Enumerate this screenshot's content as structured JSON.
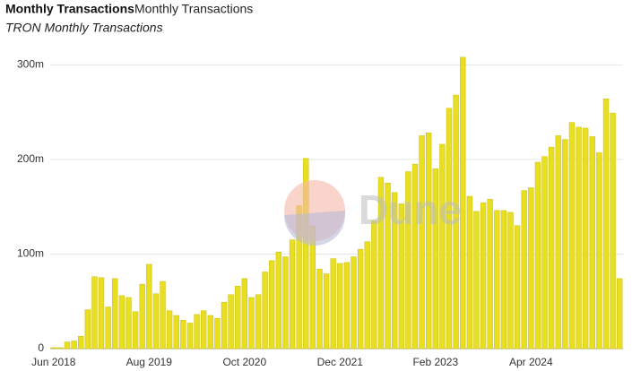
{
  "title": "Monthly Transactions",
  "subtitle_tab": "Monthly Transactions",
  "watermark": "Dune",
  "chart_data": {
    "type": "bar",
    "title": "TRON Monthly Transactions",
    "color": "#e9df20",
    "grid": true,
    "categories": [
      "Jun 2018",
      null,
      null,
      null,
      null,
      null,
      null,
      null,
      null,
      null,
      null,
      null,
      null,
      null,
      "Aug 2019",
      null,
      null,
      null,
      null,
      null,
      null,
      null,
      null,
      null,
      null,
      null,
      null,
      null,
      "Oct 2020",
      null,
      null,
      null,
      null,
      null,
      null,
      null,
      null,
      null,
      null,
      null,
      null,
      null,
      "Dec 2021",
      null,
      null,
      null,
      null,
      null,
      null,
      null,
      null,
      null,
      null,
      null,
      null,
      null,
      "Feb 2023",
      null,
      null,
      null,
      null,
      null,
      null,
      null,
      null,
      null,
      null,
      null,
      null,
      null,
      "Apr 2024",
      null,
      null,
      null,
      null,
      null,
      null,
      null,
      null,
      null,
      null,
      null,
      null,
      null
    ],
    "values": [
      1,
      1,
      7,
      8,
      13,
      41,
      76,
      75,
      44,
      74,
      56,
      54,
      39,
      68,
      89,
      58,
      71,
      40,
      35,
      30,
      27,
      36,
      40,
      35,
      32,
      49,
      57,
      66,
      74,
      54,
      57,
      81,
      93,
      102,
      97,
      115,
      151,
      201,
      130,
      84,
      79,
      95,
      90,
      91,
      97,
      105,
      113,
      135,
      181,
      175,
      165,
      153,
      187,
      195,
      225,
      228,
      190,
      216,
      254,
      268,
      308,
      161,
      145,
      154,
      158,
      146,
      146,
      144,
      130,
      167,
      170,
      197,
      203,
      213,
      225,
      221,
      239,
      234,
      233,
      224,
      207,
      264,
      249,
      74
    ],
    "ylim": [
      0,
      320
    ],
    "yticks": [
      0,
      {
        "value": 100,
        "label": "100m"
      },
      {
        "value": 200,
        "label": "200m"
      },
      {
        "value": 300,
        "label": "300m"
      }
    ]
  }
}
